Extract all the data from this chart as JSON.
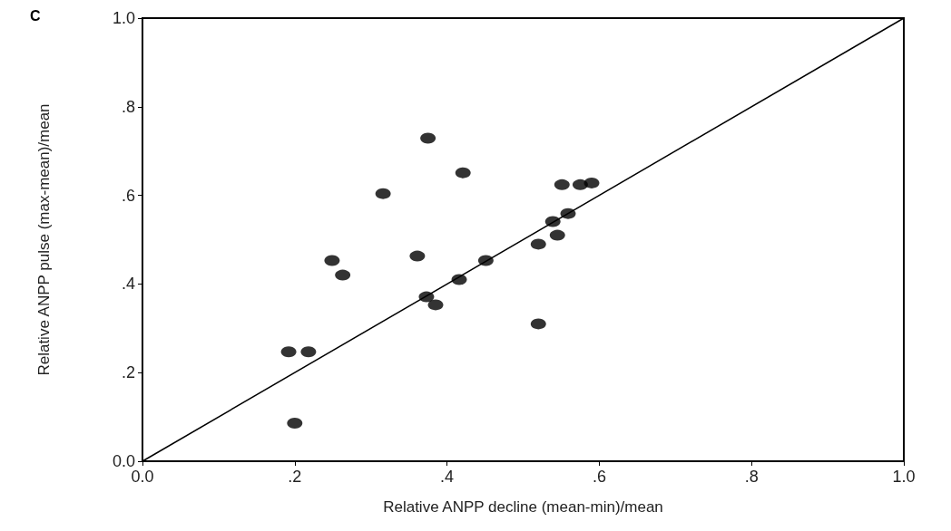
{
  "chart_data": {
    "type": "scatter",
    "title": "C",
    "xlabel": "Relative ANPP decline (mean-min)/mean",
    "ylabel": "Relative ANPP pulse (max-mean)/mean",
    "xlim": [
      0,
      1
    ],
    "ylim": [
      0,
      1
    ],
    "xticks": [
      {
        "value": 0,
        "label": "0.0"
      },
      {
        "value": 0.2,
        "label": ".2"
      },
      {
        "value": 0.4,
        "label": ".4"
      },
      {
        "value": 0.6,
        "label": ".6"
      },
      {
        "value": 0.8,
        "label": ".8"
      },
      {
        "value": 1,
        "label": "1.0"
      }
    ],
    "yticks": [
      {
        "value": 0,
        "label": "0.0"
      },
      {
        "value": 0.2,
        "label": ".2"
      },
      {
        "value": 0.4,
        "label": ".4"
      },
      {
        "value": 0.6,
        "label": ".6"
      },
      {
        "value": 0.8,
        "label": ".8"
      },
      {
        "value": 1,
        "label": "1.0"
      }
    ],
    "grid": false,
    "marker": "circle",
    "series": [
      {
        "color": "#000000",
        "x": [
          0.375,
          0.421,
          0.316,
          0.551,
          0.575,
          0.59,
          0.539,
          0.559,
          0.545,
          0.52,
          0.249,
          0.263,
          0.361,
          0.451,
          0.416,
          0.373,
          0.385,
          0.52,
          0.192,
          0.218,
          0.2
        ],
        "values": [
          0.729,
          0.651,
          0.604,
          0.624,
          0.624,
          0.628,
          0.541,
          0.559,
          0.51,
          0.49,
          0.453,
          0.42,
          0.463,
          0.453,
          0.41,
          0.371,
          0.353,
          0.31,
          0.247,
          0.247,
          0.086
        ]
      },
      {
        "type": "line",
        "color": "#000000",
        "marker": "none",
        "line_style": "solid",
        "x": [
          0,
          1
        ],
        "values": [
          0,
          1
        ]
      }
    ]
  }
}
